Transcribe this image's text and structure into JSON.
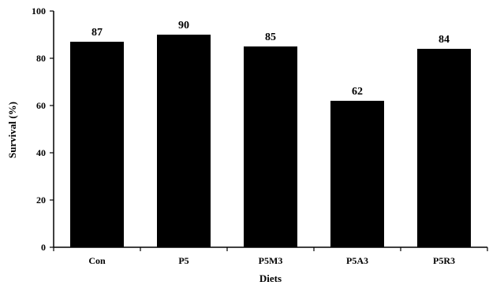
{
  "chart_data": {
    "type": "bar",
    "categories": [
      "Con",
      "P5",
      "P5M3",
      "P5A3",
      "P5R3"
    ],
    "values": [
      87,
      90,
      85,
      62,
      84
    ],
    "data_labels": [
      "87",
      "90",
      "85",
      "62",
      "84"
    ],
    "title": "",
    "xlabel": "Diets",
    "ylabel": "Survival (%)",
    "ylim": [
      0,
      100
    ],
    "yticks": [
      0,
      20,
      40,
      60,
      80,
      100
    ],
    "grid": false,
    "legend": "none",
    "bar_color": "#000000"
  }
}
